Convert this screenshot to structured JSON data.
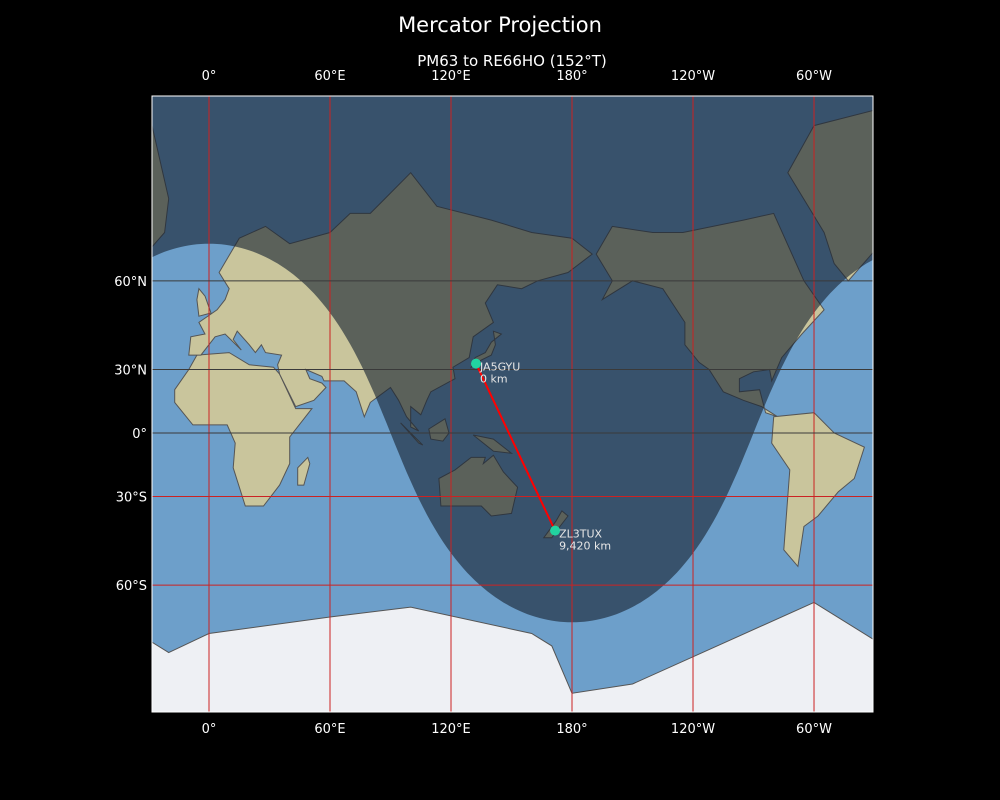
{
  "title": "Mercator Projection",
  "subtitle": "PM63 to RE66HO (152°T)",
  "map": {
    "projection": "mercator",
    "central_longitude": 150.5,
    "lon_range": [
      -28.3,
      329.3
    ],
    "lat_range": [
      -80,
      84.3
    ],
    "x_ticks": [
      {
        "lon": 0,
        "label": "0°"
      },
      {
        "lon": 60,
        "label": "60°E"
      },
      {
        "lon": 120,
        "label": "120°E"
      },
      {
        "lon": 180,
        "label": "180°"
      },
      {
        "lon": 240,
        "label": "120°W"
      },
      {
        "lon": 300,
        "label": "60°W"
      }
    ],
    "y_ticks": [
      {
        "lat": 60,
        "label": "60°N"
      },
      {
        "lat": 30,
        "label": "30°N"
      },
      {
        "lat": 0,
        "label": "0°"
      },
      {
        "lat": -30,
        "label": "30°S"
      },
      {
        "lat": -60,
        "label": "60°S"
      }
    ],
    "gridline_color": "#cc2222",
    "path_color": "#ff0000",
    "station_color": "#22d3a0",
    "ocean_color": "#6d9fca",
    "land_color": "#c9c59c",
    "night_shade": "day/night terminator",
    "subsolar_declination": -22,
    "subsolar_longitude": 0
  },
  "stations": [
    {
      "call": "JA5GYU",
      "distance": "0 km",
      "lon": 132.4,
      "lat": 32.5
    },
    {
      "call": "ZL3TUX",
      "distance": "9,420 km",
      "lon": 171.6,
      "lat": -43.5
    }
  ]
}
